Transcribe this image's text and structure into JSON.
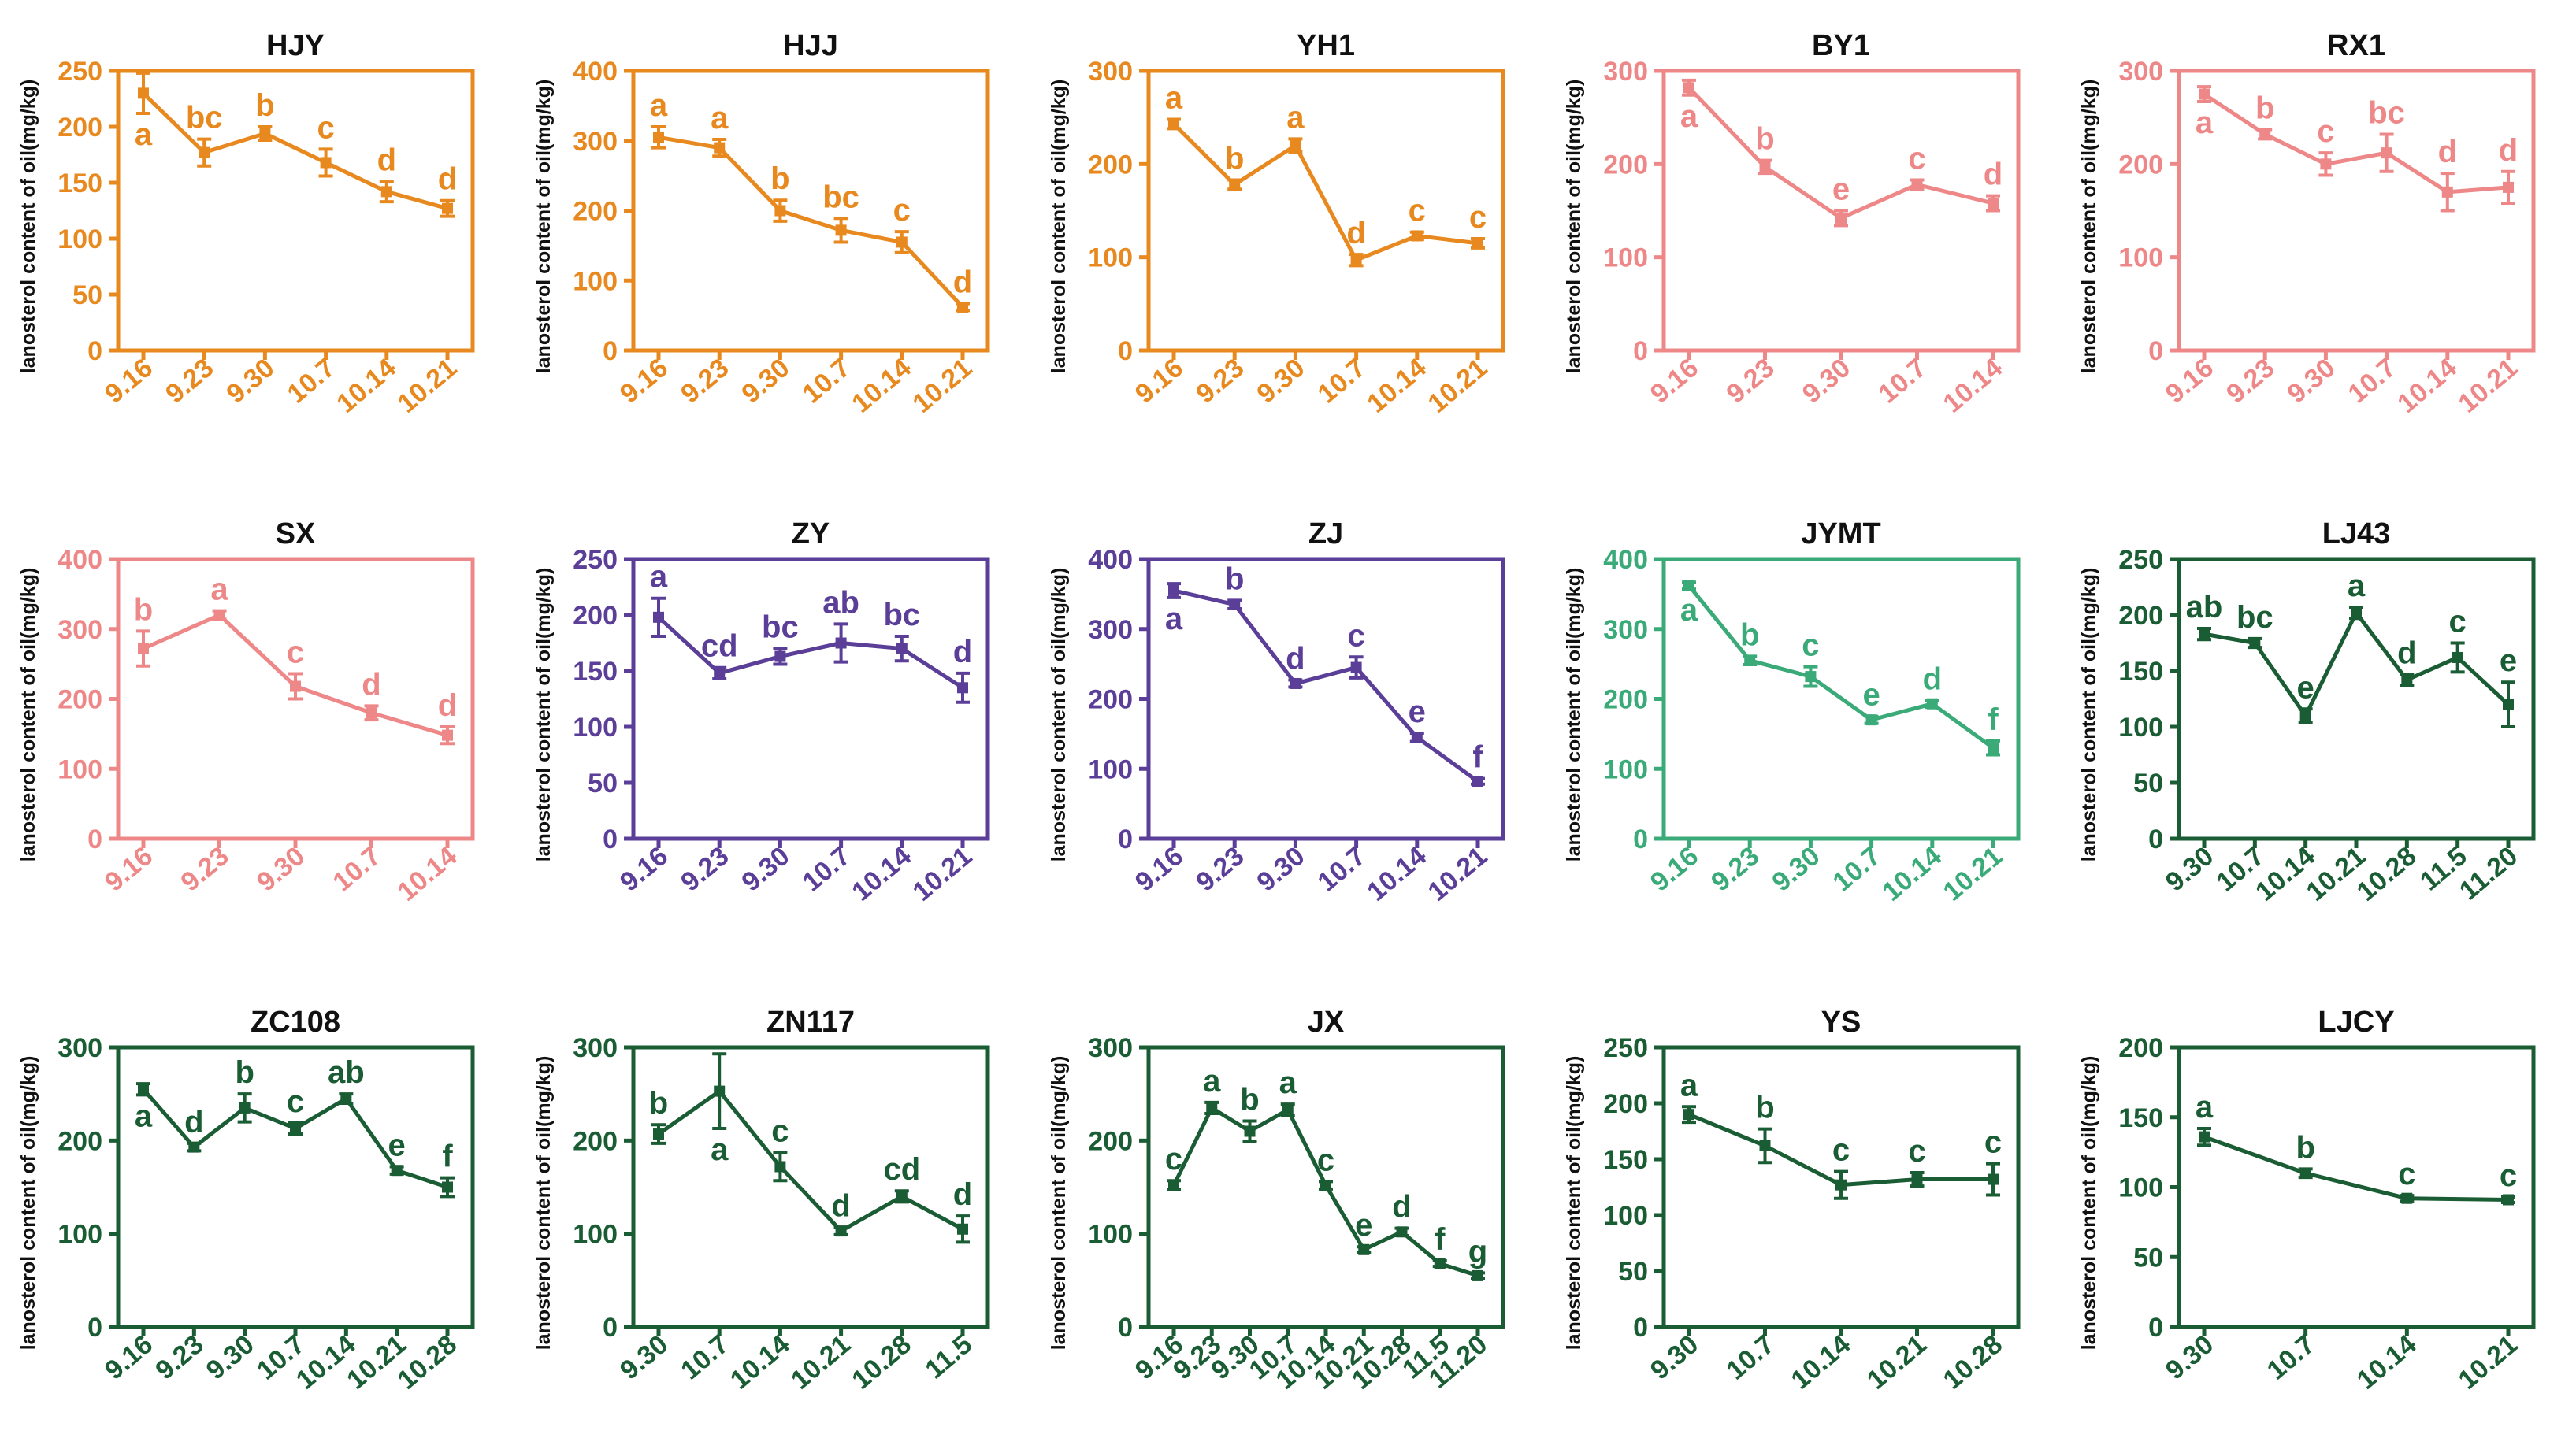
{
  "chart_data": [
    {
      "type": "line",
      "title": "HJY",
      "color": "#e8891f",
      "ylabel": "lanosterol content of oil(mg/kg)",
      "categories": [
        "9.16",
        "9.23",
        "9.30",
        "10.7",
        "10.14",
        "10.21"
      ],
      "values": [
        230,
        177,
        194,
        168,
        142,
        127
      ],
      "errors": [
        18,
        12,
        6,
        12,
        9,
        7
      ],
      "letters": [
        "a",
        "bc",
        "b",
        "c",
        "d",
        "d"
      ],
      "ylim": [
        0,
        250
      ],
      "yticks": [
        0,
        50,
        100,
        150,
        200,
        250
      ]
    },
    {
      "type": "line",
      "title": "HJJ",
      "color": "#e8891f",
      "ylabel": "lanosterol content of oil(mg/kg)",
      "categories": [
        "9.16",
        "9.23",
        "9.30",
        "10.7",
        "10.14",
        "10.21"
      ],
      "values": [
        305,
        290,
        200,
        172,
        155,
        62
      ],
      "errors": [
        15,
        12,
        15,
        17,
        15,
        5
      ],
      "letters": [
        "a",
        "a",
        "b",
        "bc",
        "c",
        "d"
      ],
      "ylim": [
        0,
        400
      ],
      "yticks": [
        0,
        100,
        200,
        300,
        400
      ]
    },
    {
      "type": "line",
      "title": "YH1",
      "color": "#e8891f",
      "ylabel": "lanosterol content of oil(mg/kg)",
      "categories": [
        "9.16",
        "9.23",
        "9.30",
        "10.7",
        "10.14",
        "10.21"
      ],
      "values": [
        243,
        178,
        220,
        97,
        123,
        115
      ],
      "errors": [
        5,
        5,
        7,
        6,
        4,
        5
      ],
      "letters": [
        "a",
        "b",
        "a",
        "d",
        "c",
        "c"
      ],
      "ylim": [
        0,
        300
      ],
      "yticks": [
        0,
        100,
        200,
        300
      ]
    },
    {
      "type": "line",
      "title": "BY1",
      "color": "#ee8888",
      "ylabel": "lanosterol content of oil(mg/kg)",
      "categories": [
        "9.16",
        "9.23",
        "9.30",
        "10.7",
        "10.14"
      ],
      "values": [
        282,
        197,
        142,
        178,
        158
      ],
      "errors": [
        8,
        7,
        8,
        5,
        8
      ],
      "letters": [
        "a",
        "b",
        "e",
        "c",
        "d"
      ],
      "ylim": [
        0,
        300
      ],
      "yticks": [
        0,
        100,
        200,
        300
      ]
    },
    {
      "type": "line",
      "title": "RX1",
      "color": "#ee8888",
      "ylabel": "lanosterol content of oil(mg/kg)",
      "categories": [
        "9.16",
        "9.23",
        "9.30",
        "10.7",
        "10.14",
        "10.21"
      ],
      "values": [
        275,
        232,
        200,
        212,
        170,
        175
      ],
      "errors": [
        8,
        5,
        12,
        20,
        20,
        17
      ],
      "letters": [
        "a",
        "b",
        "c",
        "bc",
        "d",
        "d"
      ],
      "ylim": [
        0,
        300
      ],
      "yticks": [
        0,
        100,
        200,
        300
      ]
    },
    {
      "type": "line",
      "title": "SX",
      "color": "#ee8888",
      "ylabel": "lanosterol content of oil(mg/kg)",
      "categories": [
        "9.16",
        "9.23",
        "9.30",
        "10.7",
        "10.14"
      ],
      "values": [
        272,
        320,
        218,
        180,
        148
      ],
      "errors": [
        25,
        6,
        18,
        10,
        12
      ],
      "letters": [
        "b",
        "a",
        "c",
        "d",
        "d"
      ],
      "ylim": [
        0,
        400
      ],
      "yticks": [
        0,
        100,
        200,
        300,
        400
      ]
    },
    {
      "type": "line",
      "title": "ZY",
      "color": "#5a3e98",
      "ylabel": "lanosterol content of oil(mg/kg)",
      "categories": [
        "9.16",
        "9.23",
        "9.30",
        "10.7",
        "10.14",
        "10.21"
      ],
      "values": [
        198,
        148,
        163,
        175,
        170,
        135
      ],
      "errors": [
        17,
        5,
        7,
        17,
        11,
        13
      ],
      "letters": [
        "a",
        "cd",
        "bc",
        "ab",
        "bc",
        "d"
      ],
      "ylim": [
        0,
        250
      ],
      "yticks": [
        0,
        50,
        100,
        150,
        200,
        250
      ]
    },
    {
      "type": "line",
      "title": "ZJ",
      "color": "#5a3e98",
      "ylabel": "lanosterol content of oil(mg/kg)",
      "categories": [
        "9.16",
        "9.23",
        "9.30",
        "10.7",
        "10.14",
        "10.21"
      ],
      "values": [
        355,
        335,
        222,
        245,
        145,
        82
      ],
      "errors": [
        10,
        6,
        5,
        15,
        6,
        4
      ],
      "letters": [
        "a",
        "b",
        "d",
        "c",
        "e",
        "f"
      ],
      "ylim": [
        0,
        400
      ],
      "yticks": [
        0,
        100,
        200,
        300,
        400
      ]
    },
    {
      "type": "line",
      "title": "JYMT",
      "color": "#3aaa78",
      "ylabel": "lanosterol content of oil(mg/kg)",
      "categories": [
        "9.16",
        "9.23",
        "9.30",
        "10.7",
        "10.14",
        "10.21"
      ],
      "values": [
        362,
        255,
        232,
        170,
        193,
        130
      ],
      "errors": [
        5,
        6,
        14,
        5,
        5,
        10
      ],
      "letters": [
        "a",
        "b",
        "c",
        "e",
        "d",
        "f"
      ],
      "ylim": [
        0,
        400
      ],
      "yticks": [
        0,
        100,
        200,
        300,
        400
      ]
    },
    {
      "type": "line",
      "title": "LJ43",
      "color": "#1a5c33",
      "ylabel": "lanosterol content of oil(mg/kg)",
      "categories": [
        "9.30",
        "10.7",
        "10.14",
        "10.21",
        "10.28",
        "11.5",
        "11.20"
      ],
      "values": [
        183,
        175,
        110,
        202,
        142,
        162,
        120
      ],
      "errors": [
        5,
        4,
        6,
        5,
        5,
        13,
        20
      ],
      "letters": [
        "ab",
        "bc",
        "e",
        "a",
        "d",
        "c",
        "e"
      ],
      "ylim": [
        0,
        250
      ],
      "yticks": [
        0,
        50,
        100,
        150,
        200,
        250
      ]
    },
    {
      "type": "line",
      "title": "ZC108",
      "color": "#1a5c33",
      "ylabel": "lanosterol content of oil(mg/kg)",
      "categories": [
        "9.16",
        "9.23",
        "9.30",
        "10.7",
        "10.14",
        "10.21",
        "10.28"
      ],
      "values": [
        255,
        193,
        235,
        213,
        245,
        168,
        150
      ],
      "errors": [
        6,
        4,
        15,
        6,
        5,
        4,
        10
      ],
      "letters": [
        "a",
        "d",
        "b",
        "c",
        "ab",
        "e",
        "f"
      ],
      "ylim": [
        0,
        300
      ],
      "yticks": [
        0,
        100,
        200,
        300
      ]
    },
    {
      "type": "line",
      "title": "ZN117",
      "color": "#1a5c33",
      "ylabel": "lanosterol content of oil(mg/kg)",
      "categories": [
        "9.30",
        "10.7",
        "10.14",
        "10.21",
        "10.28",
        "11.5"
      ],
      "values": [
        207,
        253,
        172,
        103,
        140,
        105
      ],
      "errors": [
        10,
        40,
        15,
        4,
        6,
        14
      ],
      "letters": [
        "b",
        "a",
        "c",
        "d",
        "cd",
        "d"
      ],
      "ylim": [
        0,
        300
      ],
      "yticks": [
        0,
        100,
        200,
        300
      ]
    },
    {
      "type": "line",
      "title": "JX",
      "color": "#1a5c33",
      "ylabel": "lanosterol content of oil(mg/kg)",
      "categories": [
        "9.16",
        "9.23",
        "9.30",
        "10.7",
        "10.14",
        "10.21",
        "10.28",
        "11.5",
        "11.20"
      ],
      "values": [
        152,
        235,
        210,
        233,
        152,
        83,
        102,
        68,
        55
      ],
      "errors": [
        5,
        6,
        11,
        6,
        4,
        3,
        4,
        3,
        3
      ],
      "letters": [
        "c",
        "a",
        "b",
        "a",
        "c",
        "e",
        "d",
        "f",
        "g"
      ],
      "ylim": [
        0,
        300
      ],
      "yticks": [
        0,
        100,
        200,
        300
      ]
    },
    {
      "type": "line",
      "title": "YS",
      "color": "#1a5c33",
      "ylabel": "lanosterol content of oil(mg/kg)",
      "categories": [
        "9.30",
        "10.7",
        "10.14",
        "10.21",
        "10.28"
      ],
      "values": [
        190,
        162,
        127,
        132,
        132
      ],
      "errors": [
        7,
        15,
        12,
        6,
        14
      ],
      "letters": [
        "a",
        "b",
        "c",
        "c",
        "c"
      ],
      "ylim": [
        0,
        250
      ],
      "yticks": [
        0,
        50,
        100,
        150,
        200,
        250
      ]
    },
    {
      "type": "line",
      "title": "LJCY",
      "color": "#1a5c33",
      "ylabel": "lanosterol content of oil(mg/kg)",
      "categories": [
        "9.30",
        "10.7",
        "10.14",
        "10.21"
      ],
      "values": [
        136,
        110,
        92,
        91
      ],
      "errors": [
        6,
        3,
        2,
        2
      ],
      "letters": [
        "a",
        "b",
        "c",
        "c"
      ],
      "ylim": [
        0,
        200
      ],
      "yticks": [
        0,
        50,
        100,
        150,
        200
      ]
    }
  ]
}
